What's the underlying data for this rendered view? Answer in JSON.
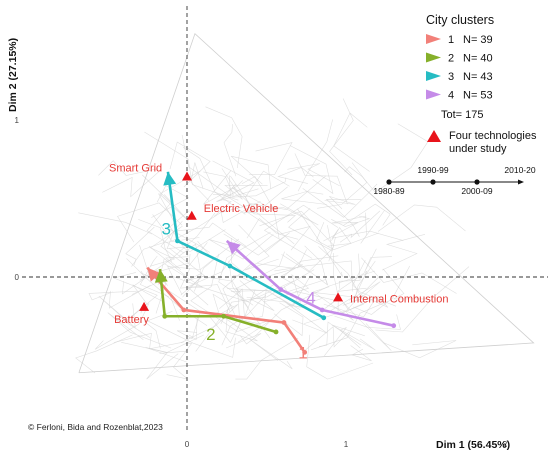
{
  "chart_data": {
    "type": "scatter",
    "xlabel": "Dim 1 (56.45%)",
    "ylabel": "Dim 2 (27.15%)",
    "xlim": [
      -1.05,
      2.3
    ],
    "ylim": [
      -0.95,
      1.68
    ],
    "x_ticks": [
      "0",
      "1",
      "2"
    ],
    "y_ticks": [
      "0",
      "1"
    ],
    "technologies": [
      {
        "name": "Smart Grid",
        "x": 0.0,
        "y": 0.64
      },
      {
        "name": "Electric Vehicle",
        "x": 0.03,
        "y": 0.39
      },
      {
        "name": "Battery",
        "x": -0.27,
        "y": -0.19
      },
      {
        "name": "Internal Combustion",
        "x": 0.95,
        "y": -0.13
      }
    ],
    "clusters": [
      {
        "label": "1",
        "n": "N= 39",
        "color": "#f28079",
        "path": [
          [
            0.74,
            -0.48
          ],
          [
            0.61,
            -0.29
          ],
          [
            -0.02,
            -0.21
          ],
          [
            -0.25,
            0.06
          ]
        ]
      },
      {
        "label": "2",
        "n": "N= 40",
        "color": "#86b02a",
        "path": [
          [
            0.56,
            -0.35
          ],
          [
            0.23,
            -0.25
          ],
          [
            -0.14,
            -0.25
          ],
          [
            -0.17,
            0.05
          ]
        ]
      },
      {
        "label": "3",
        "n": "N= 43",
        "color": "#26bcc3",
        "path": [
          [
            0.86,
            -0.26
          ],
          [
            0.27,
            0.07
          ],
          [
            -0.06,
            0.23
          ],
          [
            -0.12,
            0.67
          ]
        ]
      },
      {
        "label": "4",
        "n": "N= 53",
        "color": "#c58be8",
        "path": [
          [
            1.3,
            -0.31
          ],
          [
            0.85,
            -0.21
          ],
          [
            0.59,
            -0.08
          ],
          [
            0.25,
            0.23
          ]
        ]
      }
    ],
    "legend": {
      "title": "City clusters",
      "total": "Tot= 175",
      "tech_marker_label": [
        "Four technologies",
        "under study"
      ]
    },
    "periods": [
      "1980-89",
      "1990-99",
      "2000-09",
      "2010-20"
    ],
    "credit": "© Ferloni, Bida and Rozenblat,2023",
    "grid": false
  }
}
